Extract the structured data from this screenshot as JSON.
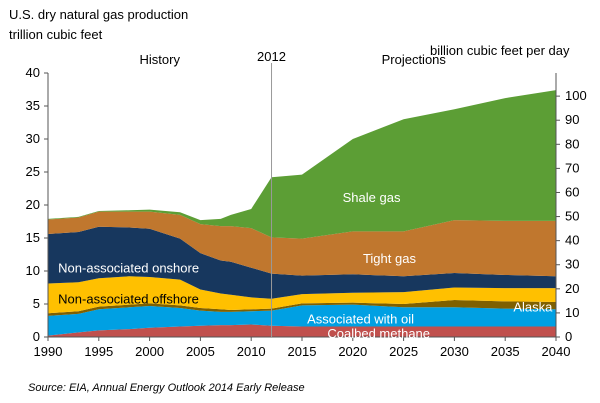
{
  "chart_data": {
    "type": "area",
    "title": "U.S. dry natural gas production",
    "left_axis_label": "trillion cubic feet",
    "right_axis_label": "billion cubic feet per day",
    "source": "Source:  EIA, Annual Energy Outlook 2014 Early Release",
    "x_ticks": [
      1990,
      1995,
      2000,
      2005,
      2010,
      2015,
      2020,
      2025,
      2030,
      2035,
      2040
    ],
    "y_ticks_left": [
      0,
      5,
      10,
      15,
      20,
      25,
      30,
      35,
      40
    ],
    "y_ticks_right": [
      0,
      10,
      20,
      30,
      40,
      50,
      60,
      70,
      80,
      90,
      100
    ],
    "xlim": [
      1990,
      2040
    ],
    "ylim_left": [
      0,
      40
    ],
    "ylim_right_bcf_per_day": [
      0,
      109.6
    ],
    "stacked": true,
    "divider": {
      "year": 2012,
      "label": "2012"
    },
    "period_labels": {
      "history": "History",
      "projections": "Projections"
    },
    "x": [
      1990,
      1993,
      1995,
      1998,
      2000,
      2003,
      2005,
      2007,
      2008,
      2010,
      2012,
      2015,
      2020,
      2025,
      2030,
      2035,
      2040
    ],
    "series": [
      {
        "name": "Coalbed methane",
        "color": "#c0504d",
        "values": [
          0.2,
          0.7,
          1.0,
          1.2,
          1.4,
          1.6,
          1.7,
          1.8,
          1.8,
          1.9,
          1.7,
          1.6,
          1.6,
          1.6,
          1.6,
          1.6,
          1.6
        ]
      },
      {
        "name": "Associated with oil",
        "color": "#00a0e3",
        "values": [
          3.0,
          2.8,
          3.2,
          3.3,
          3.3,
          2.8,
          2.3,
          2.0,
          2.0,
          2.0,
          2.3,
          3.2,
          3.3,
          2.9,
          2.9,
          2.7,
          2.6
        ]
      },
      {
        "name": "Alaska",
        "color": "#7f6000",
        "values": [
          0.4,
          0.4,
          0.4,
          0.4,
          0.4,
          0.4,
          0.4,
          0.4,
          0.3,
          0.3,
          0.3,
          0.3,
          0.3,
          0.5,
          1.1,
          1.1,
          1.1
        ]
      },
      {
        "name": "Non-associated offshore",
        "color": "#ffc000",
        "values": [
          4.5,
          4.4,
          4.3,
          4.3,
          4.0,
          3.9,
          2.8,
          2.4,
          2.3,
          1.8,
          1.5,
          1.4,
          1.5,
          1.8,
          1.9,
          2.0,
          2.1
        ]
      },
      {
        "name": "Non-associated onshore",
        "color": "#17375e",
        "values": [
          7.5,
          7.6,
          7.8,
          7.4,
          7.3,
          6.2,
          5.5,
          5.0,
          5.0,
          4.5,
          3.8,
          2.8,
          2.8,
          2.4,
          2.2,
          2.0,
          1.8
        ]
      },
      {
        "name": "Tight gas",
        "color": "#c0772e",
        "values": [
          2.2,
          2.2,
          2.3,
          2.4,
          2.6,
          3.6,
          4.4,
          5.2,
          5.4,
          6.0,
          5.5,
          5.6,
          6.5,
          6.8,
          8.0,
          8.2,
          8.4
        ]
      },
      {
        "name": "Shale gas",
        "color": "#5c9e35",
        "values": [
          0.1,
          0.1,
          0.1,
          0.2,
          0.3,
          0.4,
          0.6,
          1.1,
          1.7,
          2.9,
          9.1,
          9.7,
          14.0,
          17.0,
          16.8,
          18.6,
          19.8
        ]
      }
    ],
    "series_labels": [
      {
        "name": "Shale gas",
        "text": "Shale gas",
        "x": 2019,
        "y": 21.2,
        "color": "#ffffff"
      },
      {
        "name": "Tight gas",
        "text": "Tight gas",
        "x": 2021,
        "y": 12.0,
        "color": "#ffffff"
      },
      {
        "name": "Non-associated onshore",
        "text": "Non-associated onshore",
        "x": 1991,
        "y": 10.5,
        "color": "#ffffff"
      },
      {
        "name": "Non-associated offshore",
        "text": "Non-associated offshore",
        "x": 1991,
        "y": 5.8,
        "color": "#000000"
      },
      {
        "name": "Alaska",
        "text": "Alaska",
        "x": 2035.8,
        "y": 4.6,
        "color": "#ffffff"
      },
      {
        "name": "Associated with oil",
        "text": "Associated with oil",
        "x": 2015.5,
        "y": 2.8,
        "color": "#ffffff"
      },
      {
        "name": "Coalbed methane",
        "text": "Coalbed methane",
        "x": 2017.5,
        "y": 0.6,
        "color": "#ffffff"
      }
    ]
  }
}
